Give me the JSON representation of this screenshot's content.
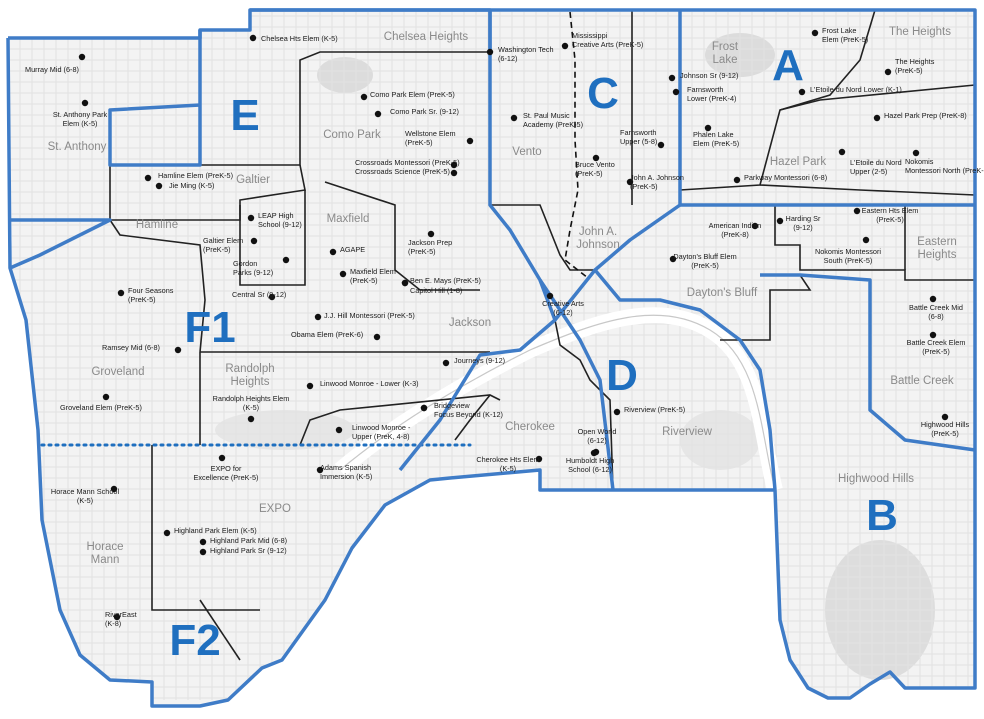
{
  "colors": {
    "zone_letter": "#1f6fbf",
    "outer_border": "#3f7cc7",
    "zone_border": "#222222",
    "neighborhood_label": "#8a8a8a",
    "school_dot": "#111111",
    "road": "#e4e4e4",
    "land": "#f3f3f3",
    "park": "#dcdcdc"
  },
  "zones": [
    "A",
    "B",
    "C",
    "D",
    "E",
    "F1",
    "F2"
  ],
  "neighborhoods": [
    "Frost Lake",
    "The Heights",
    "Hazel Park",
    "Eastern Heights",
    "Battle Creek",
    "Highwood Hills",
    "Dayton's Bluff",
    "John A. Johnson",
    "Vento",
    "Chelsea Heights",
    "Como Park",
    "St. Anthony",
    "Hamline",
    "Galtier",
    "Maxfield",
    "Jackson",
    "Groveland",
    "Randolph Heights",
    "EXPO",
    "Horace Mann",
    "Cherokee",
    "Riverview"
  ],
  "schools": [
    "Murray Mid (6-8)",
    "St. Anthony Park Elem (K-5)",
    "Chelsea Hts Elem (K-5)",
    "Washington Tech (6-12)",
    "Mississippi Creative Arts (PreK-5)",
    "Frost Lake Elem (PreK-5)",
    "The Heights (PreK-5)",
    "Johnson Sr (9-12)",
    "Farnsworth Lower (PreK-4)",
    "L'Etoile du Nord Lower (K-1)",
    "Hazel Park Prep (PreK-8)",
    "Phalen Lake Elem (PreK-5)",
    "L'Etoile du Nord Upper (2-5)",
    "Nokomis Montessori North (PreK-5)",
    "Parkway Montessori (6-8)",
    "Como Park Elem (PreK-5)",
    "Como Park Sr. (9-12)",
    "Wellstone Elem (PreK-5)",
    "Crossroads Montessori (PreK-5)",
    "Crossroads Science (PreK-5)",
    "St. Paul Music Academy (PreK-5)",
    "Farnsworth Upper (5-8)",
    "Bruce Vento (PreK-5)",
    "John A. Johnson (PreK-5)",
    "Hamline Elem (PreK-5)",
    "Jie Ming (K-5)",
    "LEAP High School (9-12)",
    "Galtier Elem (PreK-5)",
    "Gordon Parks (9-12)",
    "AGAPE",
    "Maxfield Elem (PreK-5)",
    "Jackson Prep (PreK-5)",
    "Ben E. Mays (PreK-5)",
    "Capitol Hill (1-8)",
    "Central Sr (9-12)",
    "J.J. Hill Montessori (PreK-5)",
    "Obama Elem (PreK-6)",
    "American Indian (PreK-8)",
    "Dayton's Bluff Elem (PreK-5)",
    "Harding Sr (9-12)",
    "Eastern Hts Elem (PreK-5)",
    "Nokomis Montessori South (PreK-5)",
    "Battle Creek Mid (6-8)",
    "Battle Creek Elem (PreK-5)",
    "Highwood Hills (PreK-5)",
    "Four Seasons (PreK-5)",
    "Ramsey Mid (6-8)",
    "Groveland Elem (PreK-5)",
    "Creative Arts (6-12)",
    "Journeys (9-12)",
    "Linwood Monroe - Lower (K-3)",
    "Randolph Heights Elem (K-5)",
    "Bridgeview",
    "Focus Beyond (K-12)",
    "Linwood Monroe - Upper (PreK, 4-8)",
    "Riverview (PreK-5)",
    "Open World (6-12)",
    "Humboldt High School (6-12)",
    "Cherokee Hts Elem (K-5)",
    "EXPO for Excellence (PreK-5)",
    "Adams Spanish Immersion (K-5)",
    "Horace Mann School (K-5)",
    "Highland Park Elem (K-5)",
    "Highland Park Mid (6-8)",
    "Highland Park Sr (9-12)",
    "RiverEast (K-8)"
  ]
}
